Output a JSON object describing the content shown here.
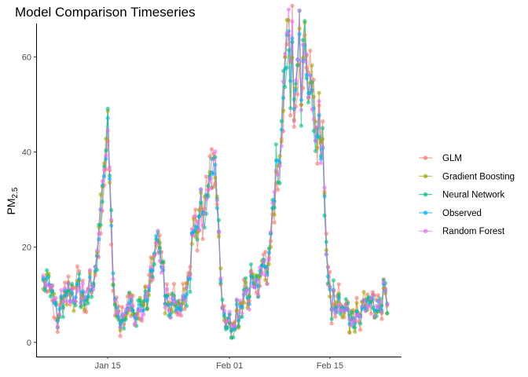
{
  "chart_data": {
    "type": "line",
    "title": "Model Comparison Timeseries",
    "xlabel": "",
    "ylabel": "PM",
    "ylabel_subscript": "2.5",
    "x_axis": {
      "type": "date",
      "range": [
        "2018-01-05",
        "2018-02-25"
      ],
      "ticks": [
        {
          "date": "2018-01-15",
          "label": "Jan 15"
        },
        {
          "date": "2018-02-01",
          "label": "Feb 01"
        },
        {
          "date": "2018-02-15",
          "label": "Feb 15"
        }
      ]
    },
    "y_axis": {
      "range": [
        -3,
        67
      ],
      "ticks": [
        0,
        20,
        40,
        60
      ]
    },
    "grid": false,
    "legend_position": "right",
    "series": [
      {
        "name": "GLM",
        "color": "#F8766D"
      },
      {
        "name": "Gradient Boosting",
        "color": "#A3A500"
      },
      {
        "name": "Neural Network",
        "color": "#00BF7D"
      },
      {
        "name": "Observed",
        "color": "#00B0F6"
      },
      {
        "name": "Random Forest",
        "color": "#E76BF3"
      }
    ],
    "observed_profile": [
      {
        "date": "2018-01-06",
        "value": 14
      },
      {
        "date": "2018-01-07",
        "value": 11
      },
      {
        "date": "2018-01-08",
        "value": 6
      },
      {
        "date": "2018-01-09",
        "value": 9
      },
      {
        "date": "2018-01-10",
        "value": 10
      },
      {
        "date": "2018-01-11",
        "value": 11
      },
      {
        "date": "2018-01-12",
        "value": 10
      },
      {
        "date": "2018-01-13",
        "value": 13
      },
      {
        "date": "2018-01-14",
        "value": 25
      },
      {
        "date": "2018-01-15",
        "value": 42
      },
      {
        "date": "2018-01-16",
        "value": 7
      },
      {
        "date": "2018-01-17",
        "value": 6
      },
      {
        "date": "2018-01-18",
        "value": 6
      },
      {
        "date": "2018-01-19",
        "value": 8
      },
      {
        "date": "2018-01-20",
        "value": 7
      },
      {
        "date": "2018-01-21",
        "value": 13
      },
      {
        "date": "2018-01-22",
        "value": 24
      },
      {
        "date": "2018-01-23",
        "value": 10
      },
      {
        "date": "2018-01-24",
        "value": 6
      },
      {
        "date": "2018-01-25",
        "value": 7
      },
      {
        "date": "2018-01-26",
        "value": 10
      },
      {
        "date": "2018-01-27",
        "value": 21
      },
      {
        "date": "2018-01-28",
        "value": 28
      },
      {
        "date": "2018-01-29",
        "value": 30
      },
      {
        "date": "2018-01-30",
        "value": 40
      },
      {
        "date": "2018-01-31",
        "value": 5
      },
      {
        "date": "2018-02-01",
        "value": 4
      },
      {
        "date": "2018-02-02",
        "value": 6
      },
      {
        "date": "2018-02-03",
        "value": 9
      },
      {
        "date": "2018-02-04",
        "value": 11
      },
      {
        "date": "2018-02-05",
        "value": 15
      },
      {
        "date": "2018-02-06",
        "value": 17
      },
      {
        "date": "2018-02-07",
        "value": 25
      },
      {
        "date": "2018-02-08",
        "value": 40
      },
      {
        "date": "2018-02-09",
        "value": 59
      },
      {
        "date": "2018-02-10",
        "value": 53
      },
      {
        "date": "2018-02-11",
        "value": 57
      },
      {
        "date": "2018-02-12",
        "value": 52
      },
      {
        "date": "2018-02-13",
        "value": 45
      },
      {
        "date": "2018-02-14",
        "value": 38
      },
      {
        "date": "2018-02-15",
        "value": 9
      },
      {
        "date": "2018-02-16",
        "value": 9
      },
      {
        "date": "2018-02-17",
        "value": 6
      },
      {
        "date": "2018-02-18",
        "value": 5
      },
      {
        "date": "2018-02-19",
        "value": 6
      },
      {
        "date": "2018-02-20",
        "value": 8
      },
      {
        "date": "2018-02-21",
        "value": 7
      },
      {
        "date": "2018-02-22",
        "value": 8
      },
      {
        "date": "2018-02-23",
        "value": 11
      }
    ]
  }
}
